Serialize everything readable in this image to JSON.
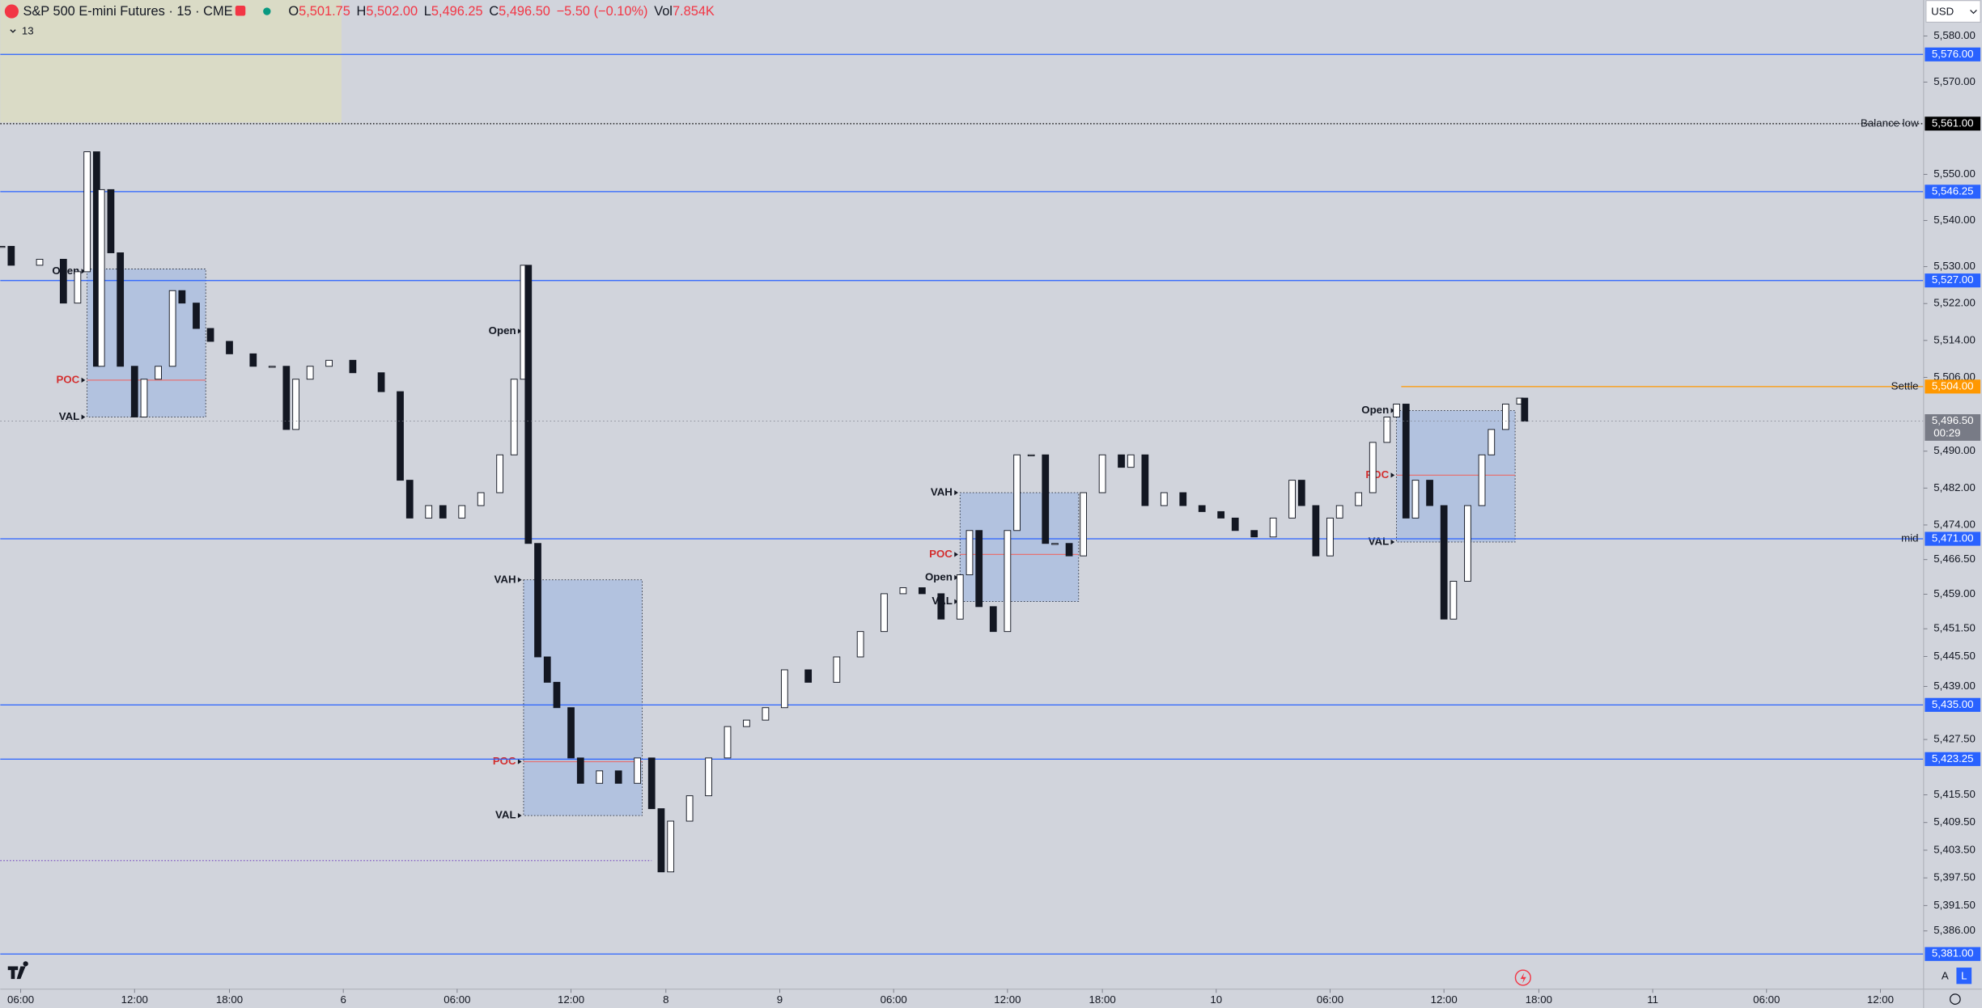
{
  "header": {
    "symbol": "S&P 500 E-mini Futures · 15 · CME",
    "ohlc": [
      {
        "key": "O",
        "value": "5,501.75"
      },
      {
        "key": "H",
        "value": "5,502.00"
      },
      {
        "key": "L",
        "value": "5,496.25"
      },
      {
        "key": "C",
        "value": "5,496.50"
      }
    ],
    "change": "−5.50 (−0.10%)",
    "vol_key": "Vol",
    "vol": "7.854K",
    "indicators": "13",
    "currency": "USD",
    "scale_auto": "A",
    "scale_log": "L"
  },
  "chart_data": {
    "type": "candlestick",
    "up_color": "#ffffff",
    "down_color": "#131722",
    "x": [
      -4,
      -2,
      4,
      9,
      12,
      14,
      16,
      17,
      19,
      21,
      24,
      26,
      29,
      32,
      34,
      37,
      40,
      44,
      49,
      53,
      56,
      58,
      61,
      65,
      70,
      76,
      80,
      82,
      86,
      89,
      93,
      97,
      101,
      104,
      106,
      107,
      109,
      111,
      113,
      116,
      118,
      122,
      126,
      130,
      133,
      135,
      137,
      141,
      145,
      149,
      153,
      157,
      161,
      166,
      172,
      177,
      182,
      186,
      190,
      194,
      198,
      200,
      202,
      205,
      208,
      210,
      213,
      216,
      218,
      221,
      224,
      228,
      232,
      234,
      237,
      241,
      245,
      249,
      253,
      256,
      260,
      264,
      268,
      270,
      273,
      276,
      278,
      282,
      285,
      288,
      290,
      292,
      294,
      297,
      300,
      302,
      305,
      308,
      310,
      313,
      316,
      317
    ],
    "close": [
      5534.4,
      5530.3,
      5531.6,
      5522.1,
      5528.9,
      5554.9,
      5508.4,
      5546.7,
      5533.0,
      5508.4,
      5497.4,
      5505.6,
      5508.4,
      5524.8,
      5522.1,
      5516.6,
      5513.8,
      5511.1,
      5508.4,
      5508.4,
      5494.7,
      5505.6,
      5508.4,
      5509.7,
      5507.0,
      5502.9,
      5483.7,
      5475.5,
      5478.2,
      5475.5,
      5478.2,
      5481.0,
      5489.2,
      5505.6,
      5530.3,
      5470.0,
      5445.4,
      5439.9,
      5434.4,
      5423.5,
      5418.0,
      5420.7,
      5418.0,
      5423.5,
      5412.5,
      5398.8,
      5409.8,
      5415.3,
      5423.5,
      5430.3,
      5431.7,
      5434.4,
      5442.6,
      5439.9,
      5445.4,
      5450.9,
      5459.1,
      5460.4,
      5459.1,
      5453.6,
      5463.2,
      5472.8,
      5456.3,
      5450.9,
      5472.8,
      5489.2,
      5489.2,
      5470.0,
      5470.0,
      5467.3,
      5481.0,
      5489.2,
      5486.5,
      5489.2,
      5478.2,
      5481.0,
      5478.2,
      5476.9,
      5475.5,
      5472.8,
      5471.4,
      5475.5,
      5483.7,
      5478.2,
      5467.3,
      5475.5,
      5478.2,
      5481.0,
      5491.9,
      5497.4,
      5500.2,
      5475.5,
      5483.7,
      5478.2,
      5453.6,
      5461.8,
      5478.2,
      5489.2,
      5494.7,
      5500.2,
      5501.5,
      5496.5
    ],
    "xlim": [
      -4.3,
      401.1
    ],
    "ylim": [
      5373.4,
      5587.8
    ],
    "xticks": [
      {
        "value": 0,
        "label": "06:00"
      },
      {
        "value": 24,
        "label": "12:00"
      },
      {
        "value": 44,
        "label": "18:00"
      },
      {
        "value": 68,
        "label": "6"
      },
      {
        "value": 92,
        "label": "06:00"
      },
      {
        "value": 116,
        "label": "12:00"
      },
      {
        "value": 136,
        "label": "8"
      },
      {
        "value": 160,
        "label": "9"
      },
      {
        "value": 184,
        "label": "06:00"
      },
      {
        "value": 208,
        "label": "12:00"
      },
      {
        "value": 228,
        "label": "18:00"
      },
      {
        "value": 252,
        "label": "10"
      },
      {
        "value": 276,
        "label": "06:00"
      },
      {
        "value": 300,
        "label": "12:00"
      },
      {
        "value": 320,
        "label": "18:00"
      },
      {
        "value": 344,
        "label": "11"
      },
      {
        "value": 368,
        "label": "06:00"
      },
      {
        "value": 392,
        "label": "12:00"
      }
    ],
    "yticks": [
      {
        "value": 5580,
        "label": "5,580.00"
      },
      {
        "value": 5570,
        "label": "5,570.00"
      },
      {
        "value": 5550,
        "label": "5,550.00"
      },
      {
        "value": 5540,
        "label": "5,540.00"
      },
      {
        "value": 5530,
        "label": "5,530.00"
      },
      {
        "value": 5522,
        "label": "5,522.00"
      },
      {
        "value": 5514,
        "label": "5,514.00"
      },
      {
        "value": 5506,
        "label": "5,506.00"
      },
      {
        "value": 5490,
        "label": "5,490.00"
      },
      {
        "value": 5482,
        "label": "5,482.00"
      },
      {
        "value": 5474,
        "label": "5,474.00"
      },
      {
        "value": 5466.5,
        "label": "5,466.50"
      },
      {
        "value": 5459,
        "label": "5,459.00"
      },
      {
        "value": 5451.5,
        "label": "5,451.50"
      },
      {
        "value": 5445.5,
        "label": "5,445.50"
      },
      {
        "value": 5439,
        "label": "5,439.00"
      },
      {
        "value": 5427.5,
        "label": "5,427.50"
      },
      {
        "value": 5415.5,
        "label": "5,415.50"
      },
      {
        "value": 5409.5,
        "label": "5,409.50"
      },
      {
        "value": 5403.5,
        "label": "5,403.50"
      },
      {
        "value": 5397.5,
        "label": "5,397.50"
      },
      {
        "value": 5391.5,
        "label": "5,391.50"
      },
      {
        "value": 5386,
        "label": "5,386.00"
      }
    ],
    "levels": [
      {
        "value": 5576,
        "label": "5,576.00",
        "color": "#2962ff"
      },
      {
        "value": 5561,
        "label": "5,561.00",
        "color": "#000000",
        "style": "dotted",
        "name": "Balance low"
      },
      {
        "value": 5546.25,
        "label": "5,546.25",
        "color": "#2962ff"
      },
      {
        "value": 5527,
        "label": "5,527.00",
        "color": "#2962ff"
      },
      {
        "value": 5504,
        "label": "5,504.00",
        "color": "#ff9800",
        "name": "Settle",
        "start": 291
      },
      {
        "value": 5471,
        "label": "5,471.00",
        "color": "#2962ff",
        "name": "mid"
      },
      {
        "value": 5435,
        "label": "5,435.00",
        "color": "#2962ff"
      },
      {
        "value": 5423.25,
        "label": "5,423.25",
        "color": "#2962ff"
      },
      {
        "value": 5381,
        "label": "5,381.00",
        "color": "#2962ff"
      },
      {
        "value": 5401.25,
        "color": "#7e57c2",
        "style": "dotted",
        "end": 133
      }
    ],
    "last": {
      "value": 5496.5,
      "label": "5,496.50",
      "countdown": "00:29",
      "color": "#787b86"
    },
    "profiles": [
      {
        "x": [
          14,
          39
        ],
        "vah": 5529.5,
        "val": 5497.4,
        "poc": 5505.4,
        "labels": [
          {
            "text": "Open",
            "value": 5529
          },
          {
            "text": "POC",
            "value": 5505.4
          },
          {
            "text": "VAL",
            "value": 5497.4
          }
        ]
      },
      {
        "x": [
          106,
          131
        ],
        "vah": 5462.1,
        "val": 5411.0,
        "poc": 5422.7,
        "labels": [
          {
            "text": "Open",
            "value": 5516.0
          },
          {
            "text": "VAH",
            "value": 5462.1
          },
          {
            "text": "POC",
            "value": 5422.7
          },
          {
            "text": "VAL",
            "value": 5411.0
          }
        ]
      },
      {
        "x": [
          198,
          223
        ],
        "vah": 5481.0,
        "val": 5457.4,
        "poc": 5467.6,
        "labels": [
          {
            "text": "VAH",
            "value": 5481.0
          },
          {
            "text": "POC",
            "value": 5467.6
          },
          {
            "text": "Open",
            "value": 5462.6
          },
          {
            "text": "VAL",
            "value": 5457.4
          }
        ]
      },
      {
        "x": [
          290,
          315
        ],
        "vah": 5498.8,
        "val": 5470.3,
        "poc": 5484.8,
        "labels": [
          {
            "text": "Open",
            "value": 5498.8
          },
          {
            "text": "POC",
            "value": 5484.8
          },
          {
            "text": "VAL",
            "value": 5470.3
          }
        ]
      }
    ]
  }
}
